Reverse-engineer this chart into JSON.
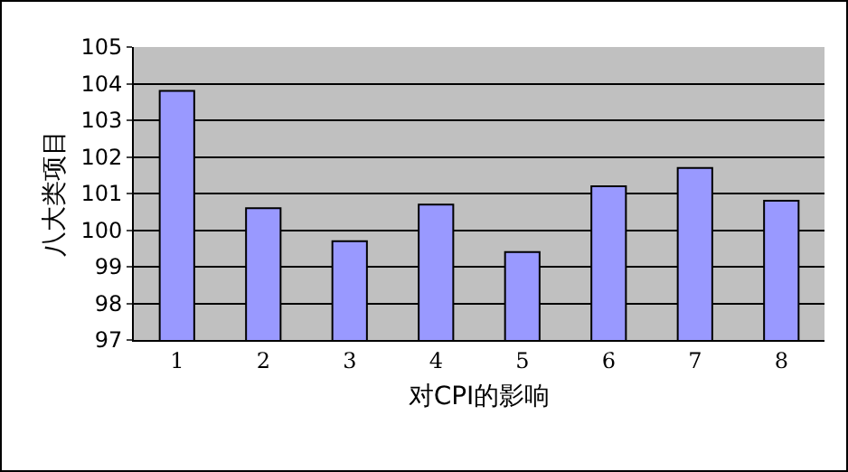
{
  "chart_data": {
    "type": "bar",
    "categories": [
      "1",
      "2",
      "3",
      "4",
      "5",
      "6",
      "7",
      "8"
    ],
    "values": [
      103.8,
      100.6,
      99.7,
      100.7,
      99.4,
      101.2,
      101.7,
      100.8
    ],
    "color": "#9999ff",
    "xlabel": "对CPI的影响",
    "ylabel": "八大类项目",
    "ylim": [
      97,
      105
    ],
    "yticks": [
      97,
      98,
      99,
      100,
      101,
      102,
      103,
      104,
      105
    ],
    "grid": "y"
  }
}
